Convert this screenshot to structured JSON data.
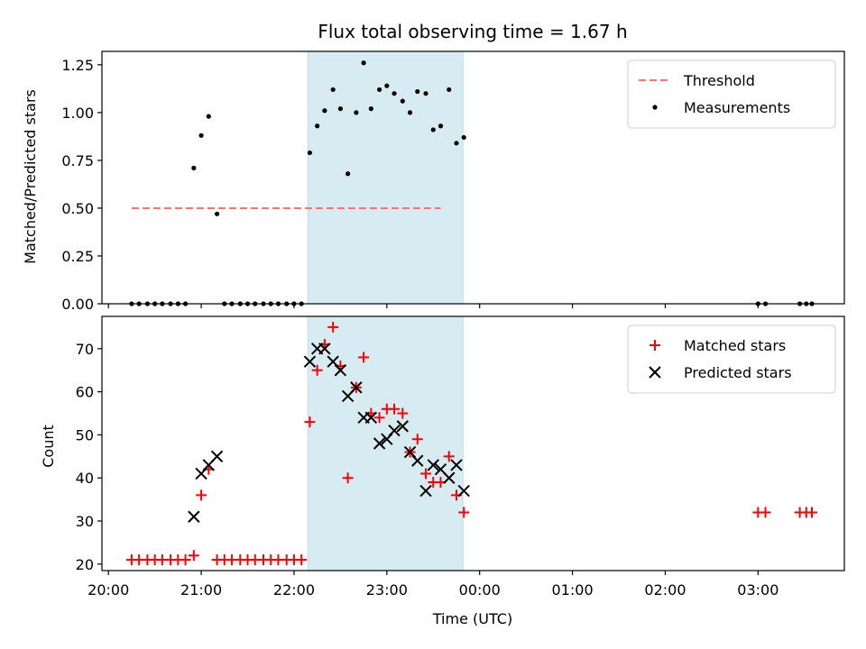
{
  "chart_data": {
    "title": "Flux total observing time = 1.67 h",
    "xlabel": "Time (UTC)",
    "x_tick_labels": [
      "20:00",
      "21:00",
      "22:00",
      "23:00",
      "00:00",
      "01:00",
      "02:00",
      "03:00"
    ],
    "x_tick_hours": [
      20,
      21,
      22,
      23,
      24,
      25,
      26,
      27
    ],
    "xlim_hours": [
      19.93,
      27.93
    ],
    "shaded_interval_hours": [
      22.15,
      23.82
    ],
    "shaded_color": "#add8e6",
    "panels": [
      {
        "type": "scatter",
        "ylabel": "Matched/Predicted stars",
        "ylim": [
          0,
          1.32
        ],
        "yticks": [
          0.0,
          0.25,
          0.5,
          0.75,
          1.0,
          1.25
        ],
        "ytick_labels": [
          "0.00",
          "0.25",
          "0.50",
          "0.75",
          "1.00",
          "1.25"
        ],
        "legend_position": "top-right",
        "threshold": {
          "name": "Threshold",
          "value": 0.5,
          "x_range_hours": [
            20.25,
            23.58
          ],
          "color": "#ff7070"
        },
        "series": [
          {
            "name": "Measurements",
            "color": "#000000",
            "points": [
              [
                20.25,
                0
              ],
              [
                20.33,
                0
              ],
              [
                20.42,
                0
              ],
              [
                20.5,
                0
              ],
              [
                20.58,
                0
              ],
              [
                20.67,
                0
              ],
              [
                20.75,
                0
              ],
              [
                20.83,
                0
              ],
              [
                20.92,
                0.71
              ],
              [
                21.0,
                0.88
              ],
              [
                21.08,
                0.98
              ],
              [
                21.17,
                0.47
              ],
              [
                21.25,
                0
              ],
              [
                21.33,
                0
              ],
              [
                21.42,
                0
              ],
              [
                21.5,
                0
              ],
              [
                21.58,
                0
              ],
              [
                21.67,
                0
              ],
              [
                21.75,
                0
              ],
              [
                21.83,
                0
              ],
              [
                21.92,
                0
              ],
              [
                22.0,
                0
              ],
              [
                22.08,
                0
              ],
              [
                22.17,
                0.79
              ],
              [
                22.25,
                0.93
              ],
              [
                22.33,
                1.01
              ],
              [
                22.42,
                1.12
              ],
              [
                22.5,
                1.02
              ],
              [
                22.58,
                0.68
              ],
              [
                22.67,
                1.0
              ],
              [
                22.75,
                1.26
              ],
              [
                22.83,
                1.02
              ],
              [
                22.92,
                1.12
              ],
              [
                23.0,
                1.14
              ],
              [
                23.08,
                1.1
              ],
              [
                23.17,
                1.06
              ],
              [
                23.25,
                1.0
              ],
              [
                23.33,
                1.11
              ],
              [
                23.42,
                1.1
              ],
              [
                23.5,
                0.91
              ],
              [
                23.58,
                0.93
              ],
              [
                23.67,
                1.12
              ],
              [
                23.75,
                0.84
              ],
              [
                23.83,
                0.87
              ],
              [
                27.0,
                0
              ],
              [
                27.08,
                0
              ],
              [
                27.45,
                0
              ],
              [
                27.52,
                0
              ],
              [
                27.58,
                0
              ]
            ]
          }
        ]
      },
      {
        "type": "scatter",
        "ylabel": "Count",
        "ylim": [
          18.5,
          77.5
        ],
        "yticks": [
          20,
          30,
          40,
          50,
          60,
          70
        ],
        "ytick_labels": [
          "20",
          "30",
          "40",
          "50",
          "60",
          "70"
        ],
        "legend_position": "top-right",
        "series": [
          {
            "name": "Matched stars",
            "marker": "plus",
            "color": "#ff0000",
            "points": [
              [
                20.25,
                21
              ],
              [
                20.33,
                21
              ],
              [
                20.42,
                21
              ],
              [
                20.5,
                21
              ],
              [
                20.58,
                21
              ],
              [
                20.67,
                21
              ],
              [
                20.75,
                21
              ],
              [
                20.83,
                21
              ],
              [
                20.92,
                22
              ],
              [
                21.0,
                36
              ],
              [
                21.08,
                42
              ],
              [
                21.17,
                21
              ],
              [
                21.25,
                21
              ],
              [
                21.33,
                21
              ],
              [
                21.42,
                21
              ],
              [
                21.5,
                21
              ],
              [
                21.58,
                21
              ],
              [
                21.67,
                21
              ],
              [
                21.75,
                21
              ],
              [
                21.83,
                21
              ],
              [
                21.92,
                21
              ],
              [
                22.0,
                21
              ],
              [
                22.08,
                21
              ],
              [
                22.17,
                53
              ],
              [
                22.25,
                65
              ],
              [
                22.33,
                71
              ],
              [
                22.42,
                75
              ],
              [
                22.5,
                66
              ],
              [
                22.58,
                40
              ],
              [
                22.67,
                61
              ],
              [
                22.75,
                68
              ],
              [
                22.83,
                55
              ],
              [
                22.92,
                54
              ],
              [
                23.0,
                56
              ],
              [
                23.08,
                56
              ],
              [
                23.17,
                55
              ],
              [
                23.25,
                46
              ],
              [
                23.33,
                49
              ],
              [
                23.42,
                41
              ],
              [
                23.5,
                39
              ],
              [
                23.58,
                39
              ],
              [
                23.67,
                45
              ],
              [
                23.75,
                36
              ],
              [
                23.83,
                32
              ],
              [
                27.0,
                32
              ],
              [
                27.08,
                32
              ],
              [
                27.45,
                32
              ],
              [
                27.52,
                32
              ],
              [
                27.58,
                32
              ]
            ]
          },
          {
            "name": "Predicted stars",
            "marker": "x",
            "color": "#000000",
            "points": [
              [
                20.92,
                31
              ],
              [
                21.0,
                41
              ],
              [
                21.08,
                43
              ],
              [
                21.17,
                45
              ],
              [
                22.17,
                67
              ],
              [
                22.25,
                70
              ],
              [
                22.33,
                70
              ],
              [
                22.42,
                67
              ],
              [
                22.5,
                65
              ],
              [
                22.58,
                59
              ],
              [
                22.67,
                61
              ],
              [
                22.75,
                54
              ],
              [
                22.83,
                54
              ],
              [
                22.92,
                48
              ],
              [
                23.0,
                49
              ],
              [
                23.08,
                51
              ],
              [
                23.17,
                52
              ],
              [
                23.25,
                46
              ],
              [
                23.33,
                44
              ],
              [
                23.42,
                37
              ],
              [
                23.5,
                43
              ],
              [
                23.58,
                42
              ],
              [
                23.67,
                40
              ],
              [
                23.75,
                43
              ],
              [
                23.83,
                37
              ]
            ]
          }
        ]
      }
    ]
  }
}
